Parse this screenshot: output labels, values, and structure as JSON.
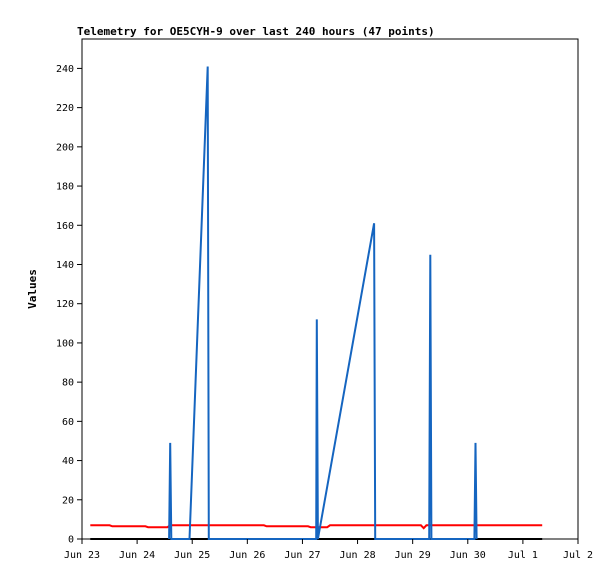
{
  "chart_data": {
    "type": "line",
    "title": "Telemetry for OE5CYH-9 over last 240 hours (47 points)",
    "xlabel": "",
    "ylabel": "Values",
    "x_unit": "days since Jun 23 00:00",
    "xlim": [
      0,
      9
    ],
    "ylim": [
      0,
      255
    ],
    "y_ticks": [
      0,
      20,
      40,
      60,
      80,
      100,
      120,
      140,
      160,
      180,
      200,
      220,
      240
    ],
    "x_ticks": [
      {
        "x": 0,
        "label": "Jun 23"
      },
      {
        "x": 1,
        "label": "Jun 24"
      },
      {
        "x": 2,
        "label": "Jun 25"
      },
      {
        "x": 3,
        "label": "Jun 26"
      },
      {
        "x": 4,
        "label": "Jun 27"
      },
      {
        "x": 5,
        "label": "Jun 28"
      },
      {
        "x": 6,
        "label": "Jun 29"
      },
      {
        "x": 7,
        "label": "Jun 30"
      },
      {
        "x": 8,
        "label": "Jul 1"
      },
      {
        "x": 9,
        "label": "Jul 2"
      }
    ],
    "grid": false,
    "legend": false,
    "series": [
      {
        "color": "#000000",
        "points": [
          [
            0.15,
            0
          ],
          [
            8.35,
            0
          ]
        ]
      },
      {
        "color": "#ff0000",
        "points": [
          [
            0.15,
            7
          ],
          [
            0.5,
            7
          ],
          [
            0.55,
            6.5
          ],
          [
            1.15,
            6.5
          ],
          [
            1.2,
            6
          ],
          [
            1.55,
            6
          ],
          [
            1.6,
            7
          ],
          [
            3.3,
            7
          ],
          [
            3.35,
            6.5
          ],
          [
            4.1,
            6.5
          ],
          [
            4.15,
            6
          ],
          [
            4.45,
            6
          ],
          [
            4.5,
            7
          ],
          [
            6.15,
            7
          ],
          [
            6.2,
            5.5
          ],
          [
            6.25,
            7
          ],
          [
            8.35,
            7
          ]
        ]
      },
      {
        "color": "#1565c0",
        "points": [
          [
            1.58,
            0
          ],
          [
            1.6,
            49
          ],
          [
            1.62,
            0
          ],
          [
            1.95,
            0
          ],
          [
            2.28,
            241
          ],
          [
            2.3,
            0
          ],
          [
            4.25,
            0
          ],
          [
            4.26,
            112
          ],
          [
            4.28,
            0
          ],
          [
            5.3,
            161
          ],
          [
            5.32,
            0
          ],
          [
            6.3,
            0
          ],
          [
            6.32,
            145
          ],
          [
            6.34,
            0
          ],
          [
            7.12,
            0
          ],
          [
            7.14,
            49
          ],
          [
            7.16,
            0
          ]
        ]
      }
    ]
  }
}
